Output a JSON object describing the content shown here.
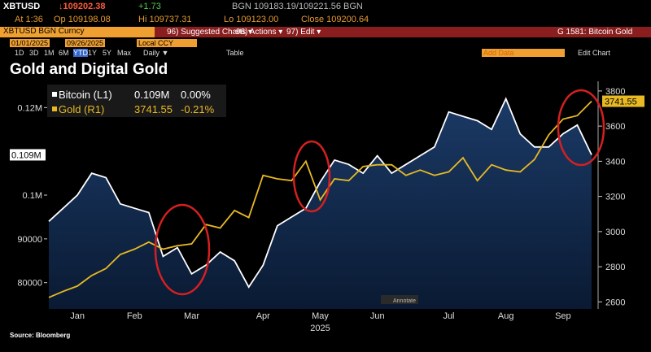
{
  "ui": {
    "ticker": "XBTUSD",
    "last": "↓109202.38",
    "net_change": "+1.73",
    "quote": "BGN 109183.19/109221.56 BGN",
    "time": "At 1:36",
    "open": "Op 109198.08",
    "high": "Hi 109737.31",
    "low": "Lo 109123.00",
    "close": "Close 109200.64",
    "security": "XBTUSD BGN Curncy",
    "menu_suggested": "96) Suggested Charts ▾",
    "menu_actions": "96) Actions ▾",
    "menu_edit": "97) Edit ▾",
    "chart_id": "G 1581: Bitcoin Gold",
    "start_date": "01/01/2025",
    "end_date": "09/26/2025",
    "currency": "Local CCY",
    "periods": [
      "1D",
      "3D",
      "1M",
      "6M",
      "YTD",
      "1Y",
      "5Y",
      "Max"
    ],
    "frequency": "Daily ▼",
    "table": "Table",
    "add_data": "Add Data",
    "edit_chart": "Edit Chart",
    "annotate": "Annotate"
  },
  "chart_data": {
    "type": "line",
    "title": "Gold and Digital Gold",
    "source": "Source: Bloomberg",
    "x_year": "2025",
    "categories": [
      null,
      null,
      "Jan",
      null,
      null,
      null,
      "Feb",
      null,
      null,
      null,
      "Mar",
      null,
      null,
      null,
      null,
      "Apr",
      null,
      null,
      null,
      "May",
      null,
      null,
      null,
      "Jun",
      null,
      null,
      null,
      null,
      "Jul",
      null,
      null,
      null,
      "Aug",
      null,
      null,
      null,
      "Sep",
      null,
      null
    ],
    "series": [
      {
        "name": "Bitcoin (L1)",
        "color": "#ffffff",
        "axis": "y",
        "last_label": "0.109M",
        "change": "0.00%",
        "values": [
          94000,
          97000,
          100000,
          105000,
          104000,
          98000,
          97000,
          96000,
          86000,
          88000,
          82000,
          84000,
          87000,
          85000,
          79000,
          84000,
          93000,
          95000,
          97000,
          103000,
          108000,
          107000,
          105000,
          109000,
          105000,
          107000,
          109000,
          111000,
          119000,
          118000,
          117000,
          115000,
          122000,
          114000,
          111000,
          111000,
          114000,
          116000,
          109200
        ]
      },
      {
        "name": "Gold (R1)",
        "color": "#e8b923",
        "axis": "y2",
        "last_label": "3741.55",
        "change": "-0.21%",
        "values": [
          2625,
          2660,
          2690,
          2750,
          2790,
          2870,
          2900,
          2940,
          2900,
          2920,
          2930,
          3040,
          3020,
          3120,
          3080,
          3320,
          3300,
          3290,
          3400,
          3180,
          3300,
          3290,
          3370,
          3380,
          3380,
          3320,
          3350,
          3320,
          3340,
          3420,
          3290,
          3380,
          3350,
          3340,
          3410,
          3550,
          3640,
          3660,
          3741.55
        ]
      }
    ],
    "ylim": [
      74000,
      126000
    ],
    "yticks": [
      80000,
      90000,
      {
        "value": 100000,
        "label": "0.1M"
      },
      {
        "value": 120000,
        "label": "0.12M"
      }
    ],
    "y2lim": [
      2560,
      3855
    ],
    "y2ticks": [
      2600,
      2800,
      3000,
      3200,
      3400,
      3600,
      3800
    ],
    "grid": false
  }
}
